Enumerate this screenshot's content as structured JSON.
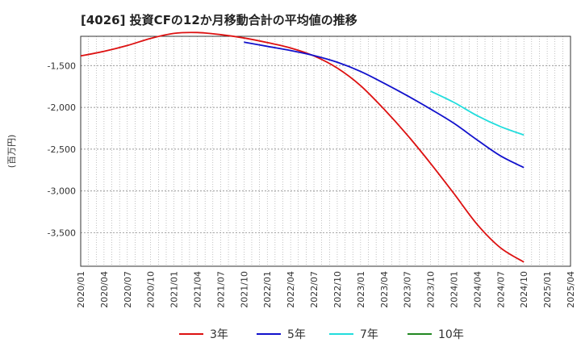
{
  "chart_data": {
    "type": "line",
    "title": "[4026]  投資CFの12か月移動合計の平均値の推移",
    "ylabel": "(百万円)",
    "xlabel": "",
    "ylim": [
      -3900,
      -1150
    ],
    "yticks": [
      -1500,
      -2000,
      -2500,
      -3000,
      -3500
    ],
    "ytick_labels": [
      "-1,500",
      "-2,000",
      "-2,500",
      "-3,000",
      "-3,500"
    ],
    "xtick_labels": [
      "2020/01",
      "2020/04",
      "2020/07",
      "2020/10",
      "2021/01",
      "2021/04",
      "2021/07",
      "2021/10",
      "2022/01",
      "2022/04",
      "2022/07",
      "2022/10",
      "2023/01",
      "2023/04",
      "2023/07",
      "2023/10",
      "2024/01",
      "2024/04",
      "2024/07",
      "2024/10",
      "2025/01",
      "2025/04"
    ],
    "grid": true,
    "legend_position": "bottom",
    "series": [
      {
        "name": "3年",
        "color": "#dd1111",
        "x": [
          "2020/01",
          "2020/04",
          "2020/07",
          "2020/10",
          "2021/01",
          "2021/04",
          "2021/07",
          "2021/10",
          "2022/01",
          "2022/04",
          "2022/07",
          "2022/10",
          "2023/01",
          "2023/04",
          "2023/07",
          "2023/10",
          "2024/01",
          "2024/04",
          "2024/07",
          "2024/10"
        ],
        "values": [
          -1385,
          -1330,
          -1260,
          -1175,
          -1115,
          -1105,
          -1130,
          -1170,
          -1225,
          -1290,
          -1385,
          -1530,
          -1740,
          -2020,
          -2330,
          -2670,
          -3030,
          -3400,
          -3680,
          -3850
        ]
      },
      {
        "name": "5年",
        "color": "#1111cc",
        "x": [
          "2021/10",
          "2022/01",
          "2022/04",
          "2022/07",
          "2022/10",
          "2023/01",
          "2023/04",
          "2023/07",
          "2023/10",
          "2024/01",
          "2024/04",
          "2024/07",
          "2024/10"
        ],
        "values": [
          -1220,
          -1270,
          -1320,
          -1380,
          -1460,
          -1570,
          -1710,
          -1860,
          -2020,
          -2190,
          -2390,
          -2580,
          -2720
        ]
      },
      {
        "name": "7年",
        "color": "#22dddd",
        "x": [
          "2023/10",
          "2024/01",
          "2024/04",
          "2024/07",
          "2024/10"
        ],
        "values": [
          -1805,
          -1940,
          -2100,
          -2230,
          -2330
        ]
      },
      {
        "name": "10年",
        "color": "#228822",
        "x": [],
        "values": []
      }
    ]
  }
}
